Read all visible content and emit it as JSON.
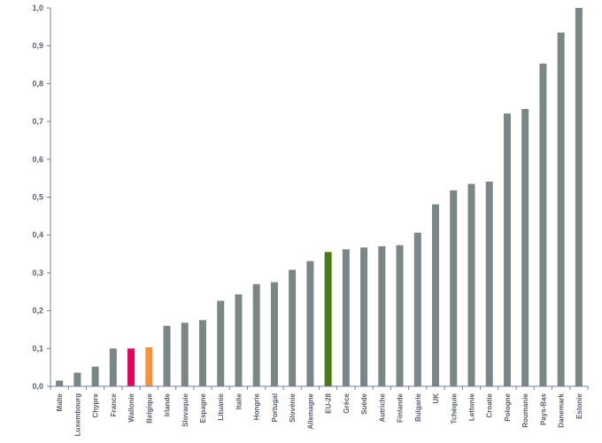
{
  "chart_data": {
    "type": "bar",
    "title": "",
    "xlabel": "",
    "ylabel": "",
    "ylim": [
      0,
      1.0
    ],
    "yticks": [
      "0,0",
      "0,1",
      "0,2",
      "0,3",
      "0,4",
      "0,5",
      "0,6",
      "0,7",
      "0,8",
      "0,9",
      "1,0"
    ],
    "grid": false,
    "categories": [
      "Malte",
      "Luxembourg",
      "Chypre",
      "France",
      "Wallonie",
      "Belgique",
      "Irlande",
      "Slovaquie",
      "Espagne",
      "Lituanie",
      "Italie",
      "Hongrie",
      "Portugal",
      "Slovénie",
      "Allemagne",
      "EU-28",
      "Grèce",
      "Suède",
      "Autriche",
      "Finlande",
      "Bulgarie",
      "UK",
      "Tchéquie",
      "Lettonie",
      "Croatie",
      "Pologne",
      "Roumanie",
      "Pays-Bas",
      "Danemark",
      "Estonie"
    ],
    "values": [
      0.015,
      0.036,
      0.052,
      0.1,
      0.1,
      0.103,
      0.16,
      0.168,
      0.175,
      0.226,
      0.243,
      0.27,
      0.275,
      0.308,
      0.331,
      0.355,
      0.362,
      0.367,
      0.37,
      0.373,
      0.406,
      0.481,
      0.518,
      0.535,
      0.541,
      0.721,
      0.733,
      0.853,
      0.935,
      1.0
    ],
    "colors": {
      "default": "#7a8786",
      "Wallonie": "#e8005f",
      "Belgique": "#f6923a",
      "EU-28": "#4a7a12"
    }
  }
}
